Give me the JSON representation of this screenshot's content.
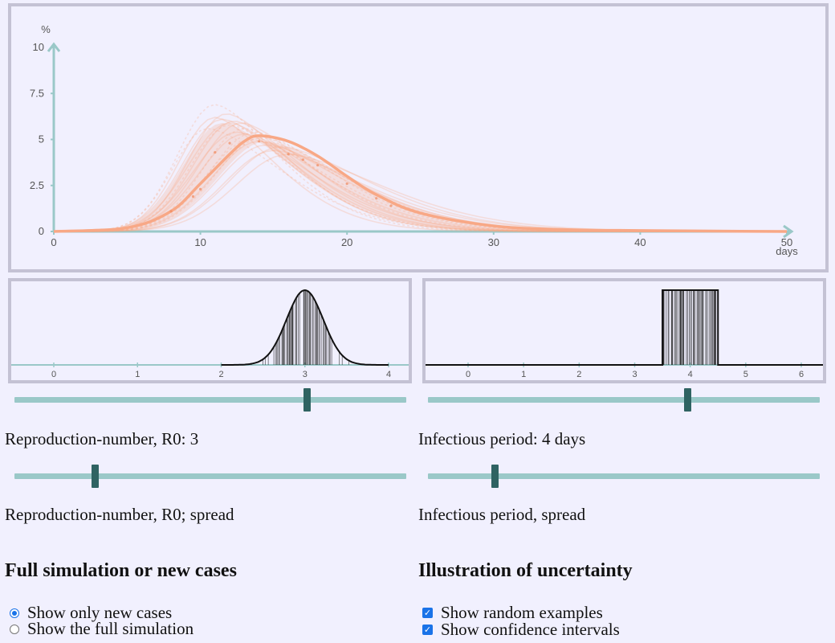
{
  "main_chart": {
    "y_unit": "%",
    "x_unit": "days",
    "y_ticks": [
      "0",
      "2.5",
      "5",
      "7.5",
      "10"
    ],
    "x_ticks": [
      "0",
      "10",
      "20",
      "30",
      "40",
      "50"
    ]
  },
  "chart_data": [
    {
      "type": "line",
      "title": "",
      "xlabel": "days",
      "ylabel": "%",
      "xlim": [
        0,
        50
      ],
      "ylim": [
        0,
        10
      ],
      "grid": false,
      "series": [
        {
          "x": [
            0,
            5,
            8,
            10,
            12,
            13,
            14,
            16,
            18,
            20,
            22,
            25,
            30,
            35,
            40,
            45,
            50
          ],
          "values": [
            0,
            0.2,
            1.1,
            2.6,
            4.2,
            4.9,
            5.2,
            4.9,
            4.1,
            3.0,
            2.0,
            1.0,
            0.3,
            0.1,
            0.05,
            0.02,
            0
          ]
        }
      ]
    },
    {
      "type": "line",
      "title": "",
      "xlim": [
        0,
        4
      ],
      "ticks": [
        "0",
        "1",
        "2",
        "3",
        "4"
      ],
      "distribution": "normal",
      "mean": 3,
      "range": [
        2,
        4
      ]
    },
    {
      "type": "line",
      "title": "",
      "xlim": [
        0,
        6
      ],
      "ticks": [
        "0",
        "1",
        "2",
        "3",
        "4",
        "5",
        "6"
      ],
      "distribution": "uniform",
      "range": [
        3.5,
        4.5
      ]
    }
  ],
  "controls": {
    "r0_slider": {
      "value": 3,
      "min": 0,
      "max": 4
    },
    "r0_label": "Reproduction-number, R0: 3",
    "r0_spread_slider": {
      "value": 0.2
    },
    "r0_spread_label": "Reproduction-number, R0; spread",
    "infectious_slider": {
      "value": 4,
      "min": 0,
      "max": 6
    },
    "infectious_label": "Infectious period: 4 days",
    "infectious_spread_slider": {
      "value": 0.17
    },
    "infectious_spread_label": "Infectious period, spread"
  },
  "section_sim": {
    "heading": "Full simulation or new cases",
    "options": [
      "Show only new cases",
      "Show the full simulation"
    ],
    "selected": 0
  },
  "section_uncertainty": {
    "heading": "Illustration of uncertainty",
    "options": [
      "Show random examples",
      "Show confidence intervals"
    ],
    "checked": [
      true,
      true
    ]
  },
  "colors": {
    "axis": "#9ac8c8",
    "curve": "#f8a886",
    "thumb": "#2f6362",
    "panel_border": "#c4c2d4",
    "background": "#f1f0fe"
  }
}
